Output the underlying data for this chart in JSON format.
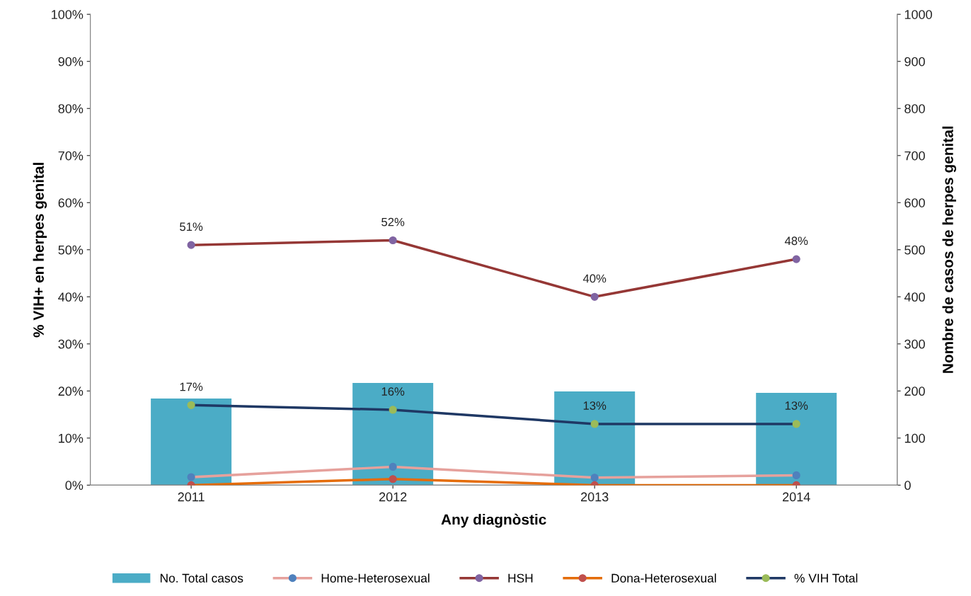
{
  "chart_data": {
    "type": "line",
    "xlabel": "Any diagnòstic",
    "ylabel": "% VIH+ en herpes genital",
    "y2label": "Nombre de casos de herpes genital",
    "categories": [
      "2011",
      "2012",
      "2013",
      "2014"
    ],
    "series": [
      {
        "name": "No. Total casos",
        "type": "bar",
        "axis": "y2",
        "color": "#4bacc6",
        "values": [
          184,
          217,
          199,
          196
        ]
      },
      {
        "name": "Home-Heterosexual",
        "color": "#e6a19c",
        "colors": [
          "#4f81bd",
          "#4f81bd",
          "#4f81bd",
          "#4f81bd"
        ],
        "values": [
          1.7,
          3.9,
          1.6,
          2.1
        ]
      },
      {
        "name": "HSH",
        "color": "#953735",
        "colors": [
          "#8064a2",
          "#8064a2",
          "#8064a2",
          "#8064a2"
        ],
        "values": [
          51,
          52,
          40,
          48
        ],
        "value_labels": [
          "51%",
          "52%",
          "40%",
          "48%"
        ]
      },
      {
        "name": "Dona-Heterosexual",
        "color": "#e46c0a",
        "colors": [
          "#c0504d",
          "#c0504d",
          "#c0504d",
          "#c0504d"
        ],
        "values": [
          0,
          1.3,
          0,
          0
        ]
      },
      {
        "name": "% VIH Total",
        "color": "#1f3864",
        "colors": [
          "#9bbb59",
          "#9bbb59",
          "#9bbb59",
          "#9bbb59"
        ],
        "values": [
          17,
          16,
          13,
          13
        ],
        "value_labels": [
          "17%",
          "16%",
          "13%",
          "13%"
        ]
      }
    ],
    "ylim": [
      0,
      100
    ],
    "yticks": [
      {
        "value": 0,
        "label": "0%"
      },
      {
        "value": 10,
        "label": "10%"
      },
      {
        "value": 20,
        "label": "20%"
      },
      {
        "value": 30,
        "label": "30%"
      },
      {
        "value": 40,
        "label": "40%"
      },
      {
        "value": 50,
        "label": "50%"
      },
      {
        "value": 60,
        "label": "60%"
      },
      {
        "value": 70,
        "label": "70%"
      },
      {
        "value": 80,
        "label": "80%"
      },
      {
        "value": 90,
        "label": "90%"
      },
      {
        "value": 100,
        "label": "100%"
      }
    ],
    "y2lim": [
      0,
      1000
    ],
    "y2ticks": [
      0,
      100,
      200,
      300,
      400,
      500,
      600,
      700,
      800,
      900,
      1000
    ],
    "marker": "circle",
    "line_style": "solid",
    "grid": false,
    "legend": "bottom"
  }
}
